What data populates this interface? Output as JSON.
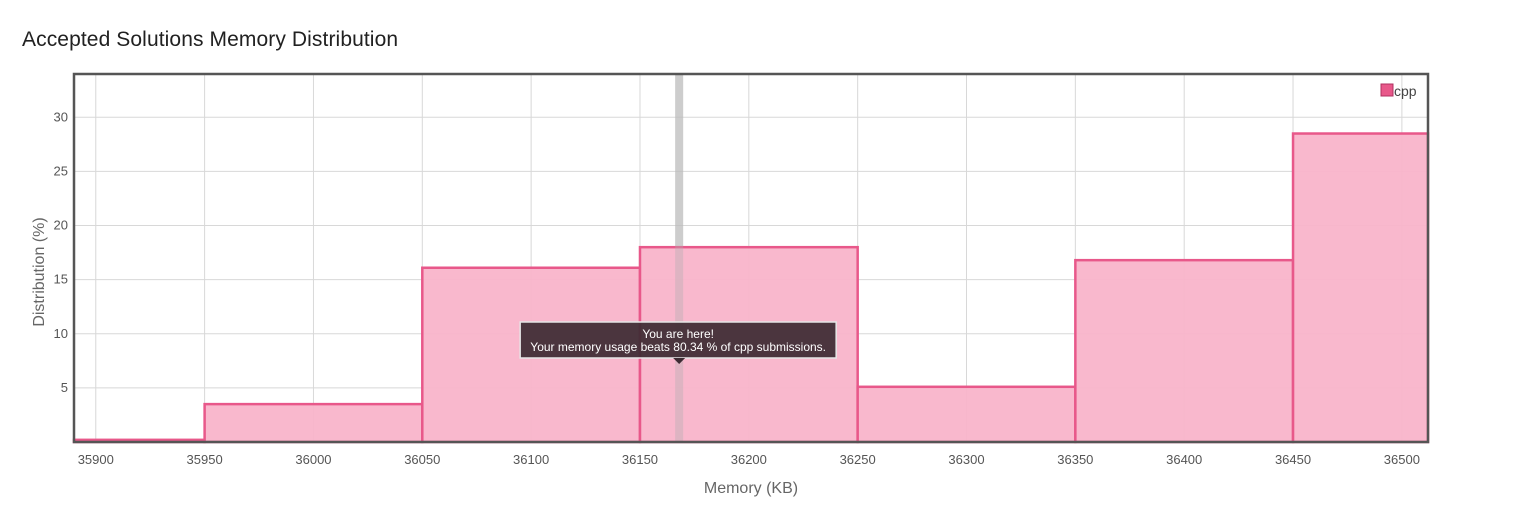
{
  "page": {
    "title": "Accepted Solutions Memory Distribution"
  },
  "chart_data": {
    "type": "bar",
    "title": "",
    "xlabel": "Memory (KB)",
    "ylabel": "Distribution (%)",
    "xlim": [
      35890,
      36512
    ],
    "ylim": [
      0,
      34
    ],
    "x_ticks": [
      35900,
      35950,
      36000,
      36050,
      36100,
      36150,
      36200,
      36250,
      36300,
      36350,
      36400,
      36450,
      36500
    ],
    "y_ticks": [
      5,
      10,
      15,
      20,
      25,
      30
    ],
    "grid": true,
    "legend_position": "top-right",
    "series": [
      {
        "name": "cpp",
        "color": "#e8588a",
        "fill": "#f9b4ca",
        "bins": [
          {
            "x0": 35890,
            "x1": 35950,
            "value": 0.2
          },
          {
            "x0": 35950,
            "x1": 36050,
            "value": 3.5
          },
          {
            "x0": 36050,
            "x1": 36150,
            "value": 16.1
          },
          {
            "x0": 36150,
            "x1": 36250,
            "value": 18.0
          },
          {
            "x0": 36250,
            "x1": 36350,
            "value": 5.1
          },
          {
            "x0": 36350,
            "x1": 36450,
            "value": 16.8
          },
          {
            "x0": 36450,
            "x1": 36512,
            "value": 28.5
          }
        ]
      }
    ],
    "marker": {
      "x": 36168,
      "tooltip_line1": "You are here!",
      "tooltip_line2": "Your memory usage beats 80.34 % of cpp submissions."
    }
  }
}
